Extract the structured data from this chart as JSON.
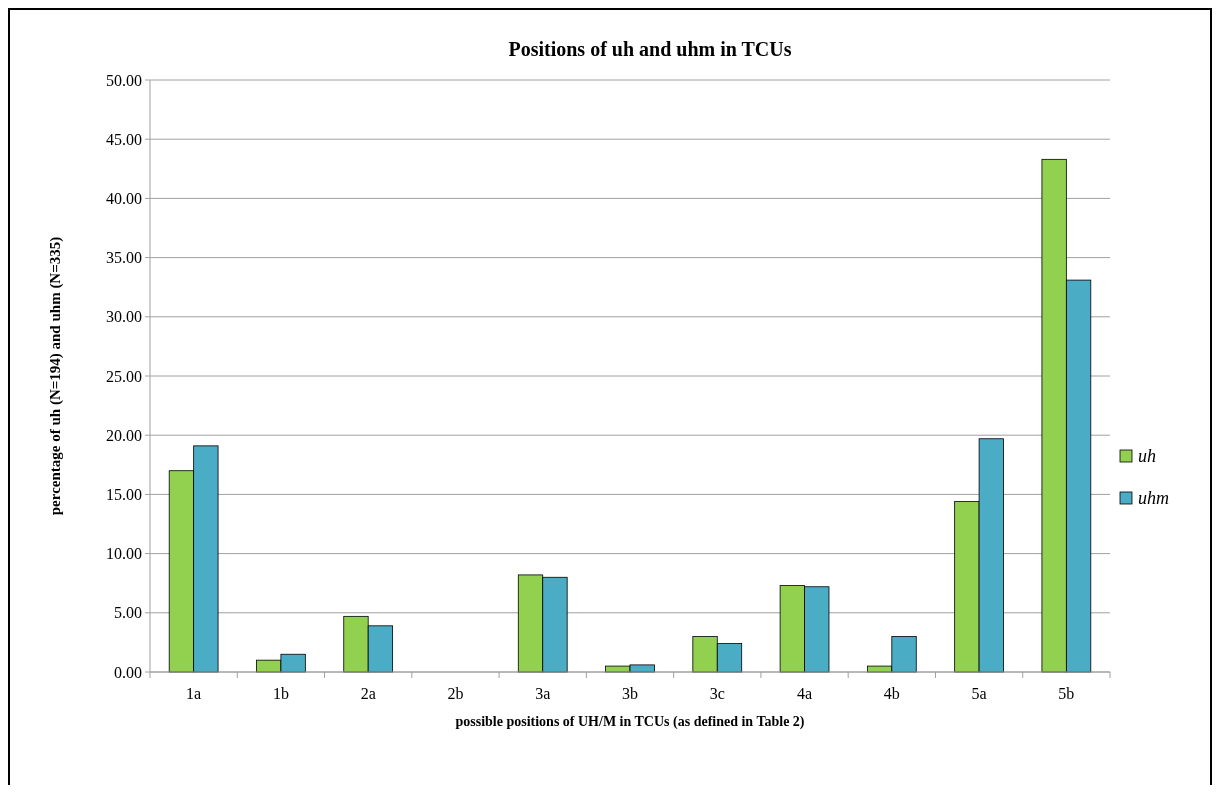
{
  "chart_data": {
    "type": "bar",
    "title": "Positions of uh and uhm in TCUs",
    "xlabel": "possible positions of UH/M in TCUs (as defined in Table 2)",
    "ylabel": "percentage of uh (N=194)  and uhm (N=335)",
    "categories": [
      "1a",
      "1b",
      "2a",
      "2b",
      "3a",
      "3b",
      "3c",
      "4a",
      "4b",
      "5a",
      "5b"
    ],
    "series": [
      {
        "name": "uh",
        "color": "#92d050",
        "values": [
          17.0,
          1.0,
          4.7,
          0,
          8.2,
          0.5,
          3.0,
          7.3,
          0.5,
          14.4,
          43.3
        ]
      },
      {
        "name": "uhm",
        "color": "#4bacc6",
        "values": [
          19.1,
          1.5,
          3.9,
          0,
          8.0,
          0.6,
          2.4,
          7.2,
          3.0,
          19.7,
          33.1
        ]
      }
    ],
    "ylim": [
      0,
      50
    ],
    "yticks": [
      {
        "value": 0,
        "label": "0.00"
      },
      {
        "value": 5,
        "label": "5.00"
      },
      {
        "value": 10,
        "label": "10.00"
      },
      {
        "value": 15,
        "label": "15.00"
      },
      {
        "value": 20,
        "label": "20.00"
      },
      {
        "value": 25,
        "label": "25.00"
      },
      {
        "value": 30,
        "label": "30.00"
      },
      {
        "value": 35,
        "label": "35.00"
      },
      {
        "value": 40,
        "label": "40.00"
      },
      {
        "value": 45,
        "label": "45.00"
      },
      {
        "value": 50,
        "label": "50.00"
      }
    ],
    "grid": "y",
    "legend": "right"
  }
}
